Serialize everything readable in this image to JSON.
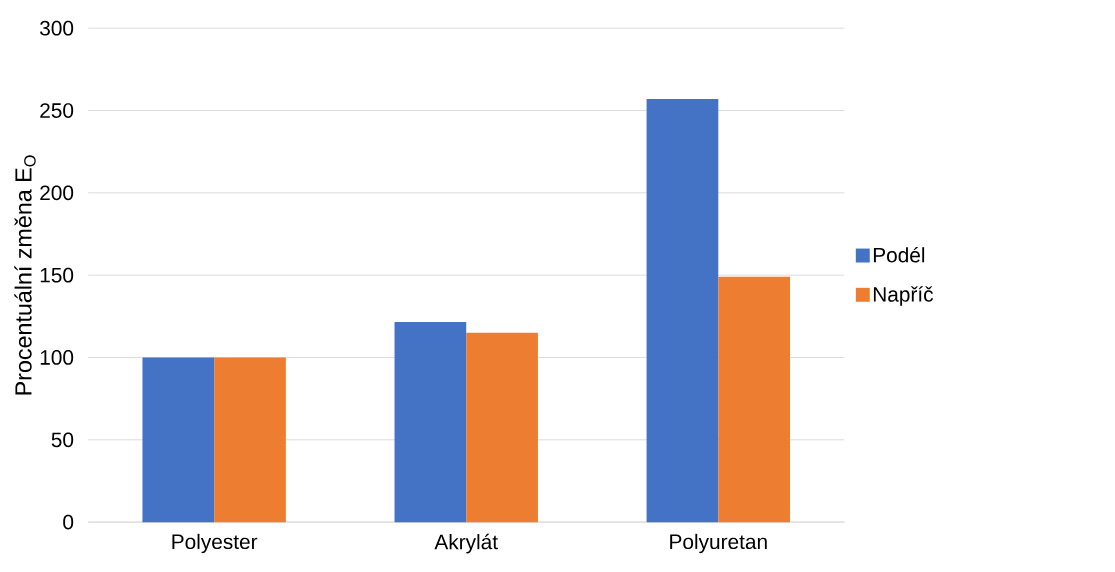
{
  "chart_data": {
    "type": "bar",
    "ylabel": "Procentuální změna E$_{O}$",
    "categories": [
      "Polyester",
      "Akrylát",
      "Polyuretan"
    ],
    "series": [
      {
        "name": "Podél",
        "color": "#4472c4",
        "values": [
          100,
          121.5,
          257
        ]
      },
      {
        "name": "Napříč",
        "color": "#ed7d31",
        "values": [
          100,
          115,
          149
        ]
      }
    ],
    "ylim": [
      0,
      300
    ],
    "yticks": [
      0,
      50,
      100,
      150,
      200,
      250,
      300
    ],
    "grid": "y",
    "legend": "right"
  }
}
